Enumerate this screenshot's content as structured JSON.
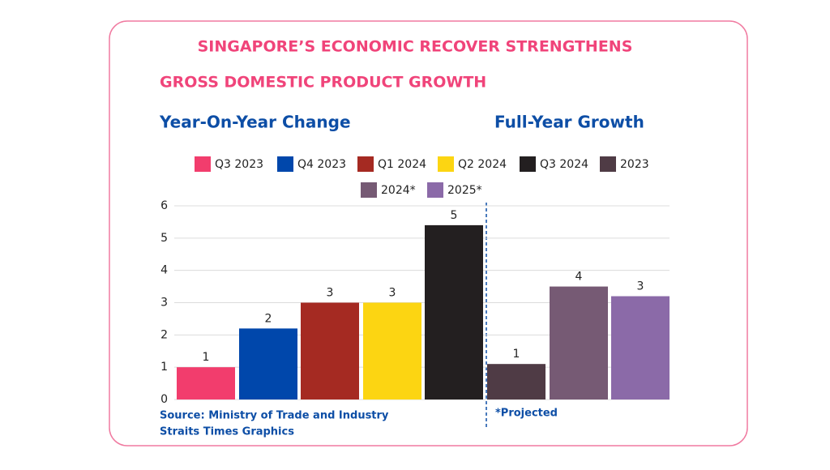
{
  "chart_data": {
    "type": "bar",
    "title": "SINGAPORE’S ECONOMIC RECOVER STRENGTHENS",
    "subtitle": "GROSS DOMESTIC PRODUCT GROWTH",
    "panel_titles": [
      "Year-On-Year Change",
      "Full-Year Growth"
    ],
    "categories": [
      "Q3 2023",
      "Q4 2023",
      "Q1 2024",
      "Q2 2024",
      "Q3 2024",
      "2023",
      "2024*",
      "2025*"
    ],
    "values": [
      1.0,
      2.2,
      3.0,
      3.0,
      5.4,
      1.1,
      3.5,
      3.2
    ],
    "value_labels": [
      "1",
      "2",
      "3",
      "3",
      "5",
      "1",
      "4",
      "3"
    ],
    "colors": [
      "#f23d6d",
      "#0047ab",
      "#a52a22",
      "#fcd512",
      "#231f20",
      "#4f3b45",
      "#765a74",
      "#8b6aa8"
    ],
    "ylim": [
      0,
      6
    ],
    "yticks": [
      0,
      1,
      2,
      3,
      4,
      5,
      6
    ],
    "grid": true,
    "source": [
      "Source: Ministry of Trade and Industry",
      "Straits Times Graphics"
    ],
    "footnote": "*Projected"
  }
}
